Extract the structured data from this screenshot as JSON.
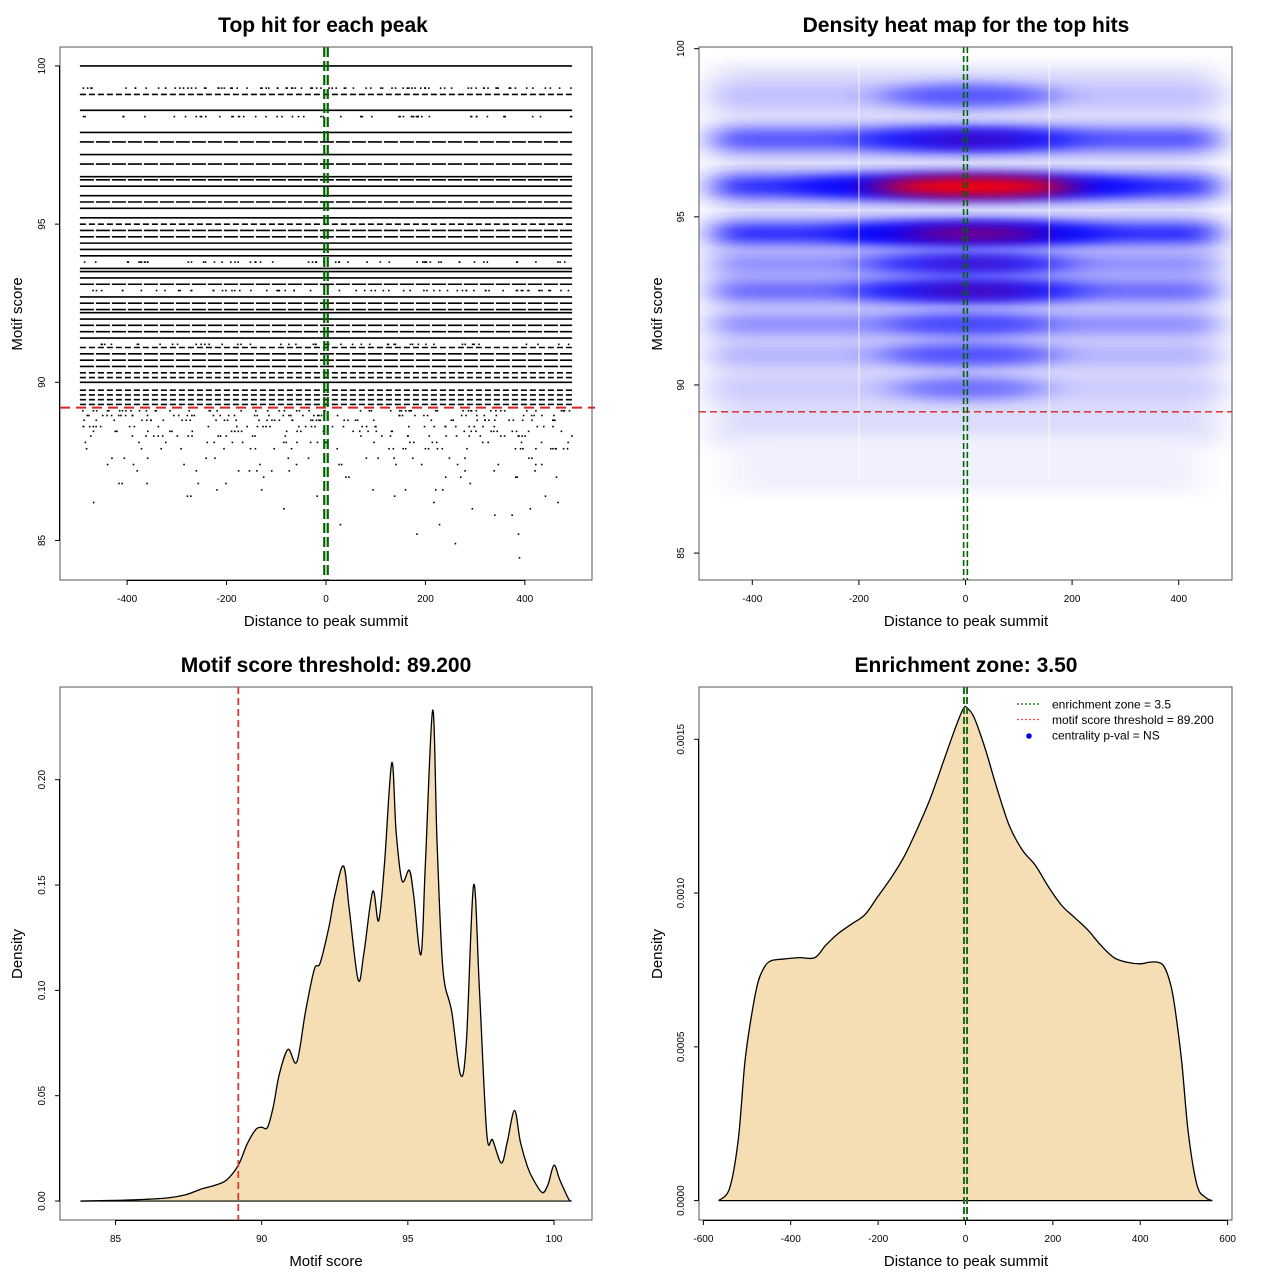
{
  "chart_data": [
    {
      "id": "p1",
      "type": "scatter",
      "title": "Top hit for each peak",
      "xlabel": "Distance to peak summit",
      "ylabel": "Motif score",
      "xlim": [
        -535,
        535
      ],
      "ylim": [
        83.75,
        100.6
      ],
      "xticks": [
        -400,
        -200,
        0,
        200,
        400
      ],
      "yticks": [
        85,
        90,
        95,
        100
      ],
      "point_x_range": [
        -495,
        495
      ],
      "score_levels": [
        {
          "y": 100.0,
          "density": 0.95
        },
        {
          "y": 99.3,
          "density": 0.55
        },
        {
          "y": 99.1,
          "density": 0.75
        },
        {
          "y": 98.6,
          "density": 1.0
        },
        {
          "y": 98.4,
          "density": 0.35
        },
        {
          "y": 97.9,
          "density": 0.95
        },
        {
          "y": 97.6,
          "density": 0.8
        },
        {
          "y": 97.2,
          "density": 1.0
        },
        {
          "y": 96.9,
          "density": 0.85
        },
        {
          "y": 96.5,
          "density": 1.0
        },
        {
          "y": 96.4,
          "density": 0.9
        },
        {
          "y": 96.2,
          "density": 1.0
        },
        {
          "y": 95.9,
          "density": 0.95
        },
        {
          "y": 95.7,
          "density": 0.9
        },
        {
          "y": 95.5,
          "density": 1.0
        },
        {
          "y": 95.2,
          "density": 1.0
        },
        {
          "y": 95.0,
          "density": 0.7
        },
        {
          "y": 94.8,
          "density": 0.8
        },
        {
          "y": 94.6,
          "density": 0.9
        },
        {
          "y": 94.4,
          "density": 1.0
        },
        {
          "y": 94.2,
          "density": 1.0
        },
        {
          "y": 94.0,
          "density": 1.0
        },
        {
          "y": 93.8,
          "density": 0.35
        },
        {
          "y": 93.6,
          "density": 1.0
        },
        {
          "y": 93.5,
          "density": 0.95
        },
        {
          "y": 93.3,
          "density": 1.0
        },
        {
          "y": 93.1,
          "density": 0.9
        },
        {
          "y": 92.9,
          "density": 0.4
        },
        {
          "y": 92.7,
          "density": 1.0
        },
        {
          "y": 92.5,
          "density": 0.9
        },
        {
          "y": 92.3,
          "density": 0.85
        },
        {
          "y": 92.2,
          "density": 1.0
        },
        {
          "y": 92.0,
          "density": 0.95
        },
        {
          "y": 91.8,
          "density": 0.9
        },
        {
          "y": 91.6,
          "density": 0.85
        },
        {
          "y": 91.4,
          "density": 1.0
        },
        {
          "y": 91.2,
          "density": 0.3
        },
        {
          "y": 91.1,
          "density": 0.7
        },
        {
          "y": 90.9,
          "density": 0.85
        },
        {
          "y": 90.7,
          "density": 0.9
        },
        {
          "y": 90.5,
          "density": 0.8
        },
        {
          "y": 90.3,
          "density": 0.75
        },
        {
          "y": 90.15,
          "density": 0.6
        },
        {
          "y": 90.0,
          "density": 1.0
        },
        {
          "y": 89.75,
          "density": 0.7
        },
        {
          "y": 89.6,
          "density": 0.75
        },
        {
          "y": 89.45,
          "density": 0.65
        },
        {
          "y": 89.3,
          "density": 0.6
        },
        {
          "y": 89.1,
          "density": 0.35
        },
        {
          "y": 88.95,
          "density": 0.3
        },
        {
          "y": 88.8,
          "density": 0.3
        },
        {
          "y": 88.6,
          "density": 0.25
        },
        {
          "y": 88.45,
          "density": 0.2
        },
        {
          "y": 88.3,
          "density": 0.2
        },
        {
          "y": 88.1,
          "density": 0.15
        },
        {
          "y": 87.9,
          "density": 0.18
        },
        {
          "y": 87.6,
          "density": 0.1
        },
        {
          "y": 87.4,
          "density": 0.08
        },
        {
          "y": 87.2,
          "density": 0.06
        },
        {
          "y": 87.0,
          "density": 0.05
        },
        {
          "y": 86.8,
          "density": 0.04
        },
        {
          "y": 86.6,
          "density": 0.035
        },
        {
          "y": 86.4,
          "density": 0.03
        },
        {
          "y": 86.2,
          "density": 0.02
        },
        {
          "y": 86.0,
          "density": 0.02
        },
        {
          "y": 85.8,
          "density": 0.015
        },
        {
          "y": 85.5,
          "density": 0.015
        },
        {
          "y": 85.2,
          "density": 0.01
        },
        {
          "y": 84.9,
          "density": 0.008
        },
        {
          "y": 84.45,
          "density": 0.003
        }
      ],
      "threshold_y": 89.2,
      "enrichment_zone": [
        -3.5,
        3.5
      ]
    },
    {
      "id": "p2",
      "type": "heatmap",
      "title": "Density heat map for the top hits",
      "xlabel": "Distance to peak summit",
      "ylabel": "Motif score",
      "xlim": [
        -500,
        500
      ],
      "ylim": [
        84.2,
        100.05
      ],
      "xticks": [
        -400,
        -200,
        0,
        200,
        400
      ],
      "yticks": [
        85,
        90,
        95,
        100
      ],
      "colorscale": [
        "#ffffff",
        "#0000ff",
        "#ff0000"
      ],
      "bands": [
        {
          "y": 98.6,
          "intensity": 0.25,
          "center_boost": 0.15
        },
        {
          "y": 97.3,
          "intensity": 0.7,
          "center_boost": 0.35
        },
        {
          "y": 95.9,
          "intensity": 0.85,
          "center_boost": 1.0
        },
        {
          "y": 94.5,
          "intensity": 0.85,
          "center_boost": 0.6
        },
        {
          "y": 93.6,
          "intensity": 0.45,
          "center_boost": 0.3
        },
        {
          "y": 92.8,
          "intensity": 0.6,
          "center_boost": 0.4
        },
        {
          "y": 91.8,
          "intensity": 0.45,
          "center_boost": 0.1
        },
        {
          "y": 90.9,
          "intensity": 0.3,
          "center_boost": 0.15
        },
        {
          "y": 89.9,
          "intensity": 0.2,
          "center_boost": 0.05
        }
      ],
      "threshold_y": 89.2,
      "enrichment_zone": [
        -3.5,
        3.5
      ],
      "white_vlines_x": [
        -200,
        157
      ]
    },
    {
      "id": "p3",
      "type": "area",
      "title": "Motif score threshold: 89.200",
      "xlabel": "Motif score",
      "ylabel": "Density",
      "xlim": [
        83.1,
        101.3
      ],
      "ylim": [
        -0.009,
        0.244
      ],
      "xticks": [
        85,
        90,
        95,
        100
      ],
      "yticks": [
        0.0,
        0.05,
        0.1,
        0.15,
        0.2
      ],
      "ytick_labels": [
        "0.00",
        "0.05",
        "0.10",
        "0.15",
        "0.20"
      ],
      "x": [
        83.8,
        85,
        86,
        86.8,
        87.4,
        87.8,
        88.0,
        88.4,
        88.8,
        89.2,
        89.5,
        89.8,
        90.0,
        90.2,
        90.4,
        90.6,
        90.9,
        91.2,
        91.5,
        91.8,
        92.0,
        92.3,
        92.5,
        92.8,
        93.0,
        93.3,
        93.5,
        93.8,
        94.0,
        94.2,
        94.45,
        94.6,
        94.8,
        95.05,
        95.2,
        95.45,
        95.6,
        95.85,
        96.0,
        96.2,
        96.5,
        96.8,
        97.0,
        97.25,
        97.45,
        97.7,
        97.9,
        98.2,
        98.4,
        98.65,
        98.85,
        99.1,
        99.3,
        99.6,
        99.8,
        100.0,
        100.2,
        100.5,
        100.6
      ],
      "y": [
        0.0,
        0.0003,
        0.0008,
        0.0015,
        0.003,
        0.005,
        0.006,
        0.0075,
        0.01,
        0.017,
        0.027,
        0.034,
        0.035,
        0.035,
        0.045,
        0.06,
        0.072,
        0.066,
        0.09,
        0.11,
        0.113,
        0.13,
        0.145,
        0.159,
        0.138,
        0.105,
        0.118,
        0.147,
        0.133,
        0.16,
        0.208,
        0.175,
        0.152,
        0.157,
        0.145,
        0.117,
        0.16,
        0.233,
        0.17,
        0.11,
        0.09,
        0.06,
        0.075,
        0.15,
        0.1,
        0.032,
        0.029,
        0.018,
        0.028,
        0.043,
        0.028,
        0.016,
        0.01,
        0.004,
        0.008,
        0.017,
        0.01,
        0.001,
        0.0
      ],
      "threshold_x": 89.2,
      "fill_color": "#f5deb3"
    },
    {
      "id": "p4",
      "type": "area",
      "title": "Enrichment zone: 3.50",
      "xlabel": "Distance to peak summit",
      "ylabel": "Density",
      "xlim": [
        -610,
        610
      ],
      "ylim": [
        -6.3e-05,
        0.00167
      ],
      "xticks": [
        -600,
        -400,
        -200,
        0,
        200,
        400,
        600
      ],
      "yticks": [
        0.0,
        0.0005,
        0.001,
        0.0015
      ],
      "ytick_labels": [
        "0.0000",
        "0.0005",
        "0.0010",
        "0.0015"
      ],
      "x": [
        -565,
        -540,
        -520,
        -505,
        -490,
        -475,
        -460,
        -445,
        -420,
        -380,
        -345,
        -320,
        -290,
        -260,
        -230,
        -200,
        -170,
        -140,
        -110,
        -80,
        -50,
        -25,
        -5,
        5,
        20,
        45,
        70,
        100,
        130,
        160,
        190,
        220,
        250,
        280,
        310,
        340,
        370,
        400,
        420,
        440,
        455,
        470,
        480,
        495,
        510,
        530,
        550,
        565
      ],
      "y": [
        0.0,
        4e-05,
        0.0002,
        0.00045,
        0.0006,
        0.00071,
        0.00076,
        0.00078,
        0.000785,
        0.00079,
        0.00079,
        0.00083,
        0.00087,
        0.0009,
        0.00093,
        0.00099,
        0.00105,
        0.00112,
        0.00121,
        0.00131,
        0.00143,
        0.00153,
        0.0016,
        0.0016,
        0.00157,
        0.00147,
        0.00135,
        0.00122,
        0.00114,
        0.00109,
        0.00102,
        0.00096,
        0.00092,
        0.00088,
        0.00083,
        0.00079,
        0.000775,
        0.00077,
        0.000775,
        0.000775,
        0.00076,
        0.0007,
        0.00062,
        0.00045,
        0.00022,
        5e-05,
        1e-05,
        0.0
      ],
      "enrichment_zone": [
        -3.5,
        3.5
      ],
      "fill_color": "#f5deb3",
      "legend": {
        "position": "top-right",
        "entries": [
          {
            "label": "enrichment zone = 3.5",
            "style": "dotted-line",
            "color": "#006400"
          },
          {
            "label": "motif score threshold = 89.200",
            "style": "dotted-line",
            "color": "#ff4444"
          },
          {
            "label": "centrality p-val = NS",
            "style": "point",
            "color": "#0000ff"
          }
        ]
      }
    }
  ]
}
